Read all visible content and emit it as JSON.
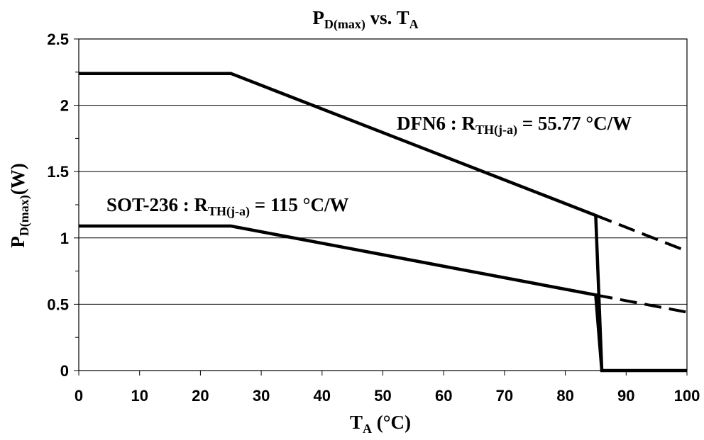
{
  "chart_data": {
    "type": "line",
    "title": {
      "main": "P",
      "sub": "D(max)",
      "suffix": " vs. T",
      "suffix_sub": "A"
    },
    "xlabel": {
      "main": "T",
      "sub": "A",
      "suffix": " (°C)"
    },
    "ylabel": {
      "main": "P",
      "sub": "D(max)",
      "suffix": "(W)"
    },
    "xlim": [
      0,
      100
    ],
    "ylim": [
      0,
      2.5
    ],
    "x_ticks": [
      "0",
      "10",
      "20",
      "30",
      "40",
      "50",
      "60",
      "70",
      "80",
      "90",
      "100"
    ],
    "y_ticks": [
      "0",
      "0.5",
      "1",
      "1.5",
      "2",
      "2.5"
    ],
    "grid": "horizontal",
    "line_color": "#000000",
    "series": [
      {
        "label": {
          "main": "DFN6 : R",
          "sub": "TH(j-a)",
          "suffix": " = 55.77 °C/W"
        },
        "solid": [
          [
            0,
            2.24
          ],
          [
            25,
            2.24
          ],
          [
            85,
            1.17
          ],
          [
            86,
            0
          ],
          [
            100,
            0
          ]
        ],
        "dashed": [
          [
            85,
            1.17
          ],
          [
            100,
            0.9
          ]
        ]
      },
      {
        "label": {
          "main": "SOT-236 : R",
          "sub": "TH(j-a)",
          "suffix": " = 115 °C/W"
        },
        "solid": [
          [
            0,
            1.09
          ],
          [
            25,
            1.09
          ],
          [
            85,
            0.57
          ],
          [
            86,
            0
          ]
        ],
        "dashed": [
          [
            85,
            0.57
          ],
          [
            100,
            0.44
          ]
        ]
      }
    ]
  }
}
